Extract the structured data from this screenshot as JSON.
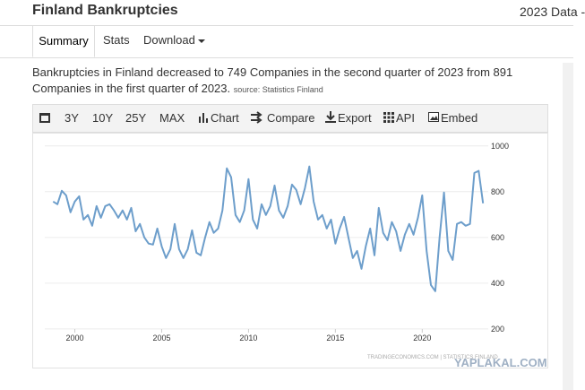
{
  "header": {
    "title": "Finland Bankruptcies",
    "right_text": "2023 Data -"
  },
  "tabs": [
    "Summary",
    "Stats",
    "Download"
  ],
  "description": {
    "text": "Bankruptcies in Finland decreased to 749 Companies in the second quarter of 2023 from 891 Companies in the first quarter of 2023.",
    "source": "source: Statistics Finland"
  },
  "toolbar": [
    "3Y",
    "10Y",
    "25Y",
    "MAX",
    "Chart",
    "Compare",
    "Export",
    "API",
    "Embed"
  ],
  "watermarks": [
    "TRADINGECONOMICS.COM | STATISTICS FINLAND",
    "YAPLAKAL.COM"
  ],
  "chart_data": {
    "type": "line",
    "color": "#6d9ecb",
    "x": [
      1998.75,
      1999,
      1999.25,
      1999.5,
      1999.75,
      2000,
      2000.25,
      2000.5,
      2000.75,
      2001,
      2001.25,
      2001.5,
      2001.75,
      2002,
      2002.25,
      2002.5,
      2002.75,
      2003,
      2003.25,
      2003.5,
      2003.75,
      2004,
      2004.25,
      2004.5,
      2004.75,
      2005,
      2005.25,
      2005.5,
      2005.75,
      2006,
      2006.25,
      2006.5,
      2006.75,
      2007,
      2007.25,
      2007.5,
      2007.75,
      2008,
      2008.25,
      2008.5,
      2008.75,
      2009,
      2009.25,
      2009.5,
      2009.75,
      2010,
      2010.25,
      2010.5,
      2010.75,
      2011,
      2011.25,
      2011.5,
      2011.75,
      2012,
      2012.25,
      2012.5,
      2012.75,
      2013,
      2013.25,
      2013.5,
      2013.75,
      2014,
      2014.25,
      2014.5,
      2014.75,
      2015,
      2015.25,
      2015.5,
      2015.75,
      2016,
      2016.25,
      2016.5,
      2016.75,
      2017,
      2017.25,
      2017.5,
      2017.75,
      2018,
      2018.25,
      2018.5,
      2018.75,
      2019,
      2019.25,
      2019.5,
      2019.75,
      2020,
      2020.25,
      2020.5,
      2020.75,
      2021,
      2021.25,
      2021.5,
      2021.75,
      2022,
      2022.25,
      2022.5,
      2022.75,
      2023,
      2023.25,
      2023.5
    ],
    "values": [
      757,
      745,
      804,
      784,
      710,
      757,
      780,
      678,
      698,
      651,
      737,
      686,
      737,
      745,
      718,
      686,
      718,
      678,
      729,
      627,
      659,
      600,
      573,
      569,
      639,
      561,
      510,
      549,
      659,
      549,
      510,
      549,
      631,
      533,
      522,
      600,
      667,
      620,
      639,
      718,
      902,
      863,
      698,
      667,
      718,
      855,
      678,
      639,
      745,
      698,
      737,
      827,
      718,
      686,
      737,
      831,
      808,
      745,
      816,
      910,
      757,
      678,
      698,
      639,
      678,
      573,
      639,
      690,
      600,
      510,
      541,
      463,
      561,
      639,
      522,
      729,
      620,
      588,
      667,
      627,
      541,
      612,
      659,
      612,
      686,
      784,
      541,
      392,
      365,
      600,
      796,
      541,
      502,
      659,
      667,
      651,
      659,
      882,
      891,
      749
    ],
    "xlim": [
      1997.6,
      2023.8
    ],
    "xticks": [
      2000,
      2005,
      2010,
      2015,
      2020
    ],
    "ylim": [
      90,
      1050
    ],
    "yticks": [
      200,
      400,
      600,
      800,
      1000
    ],
    "grid": true
  }
}
